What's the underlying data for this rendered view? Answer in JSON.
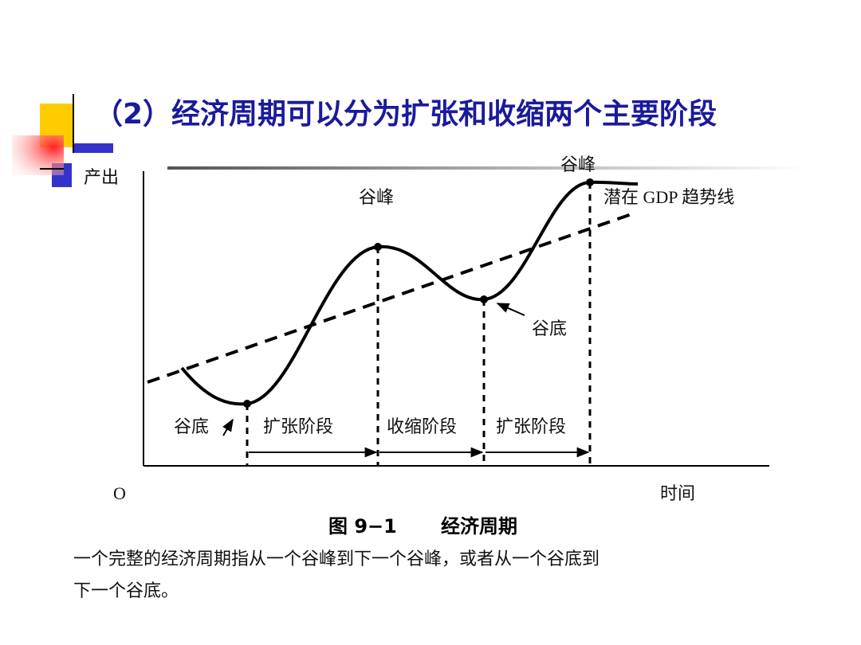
{
  "header": {
    "title": "（2）经济周期可以分为扩张和收缩两个主要阶段"
  },
  "diagram": {
    "y_axis_label": "产出",
    "origin_label": "O",
    "x_axis_label": "时间",
    "labels": {
      "peak_1": "谷峰",
      "peak_2": "谷峰",
      "trend_line": "潜在 GDP 趋势线",
      "trough_1": "谷底",
      "trough_2": "谷底"
    },
    "phases": [
      "扩张阶段",
      "收缩阶段",
      "扩张阶段"
    ]
  },
  "caption": {
    "figure_number": "图 9−1",
    "figure_title": "经济周期"
  },
  "description": {
    "lines": [
      "一个完整的经济周期指从一个谷峰到下一个谷峰，或者从一个谷底到",
      "下一个谷底。"
    ]
  }
}
